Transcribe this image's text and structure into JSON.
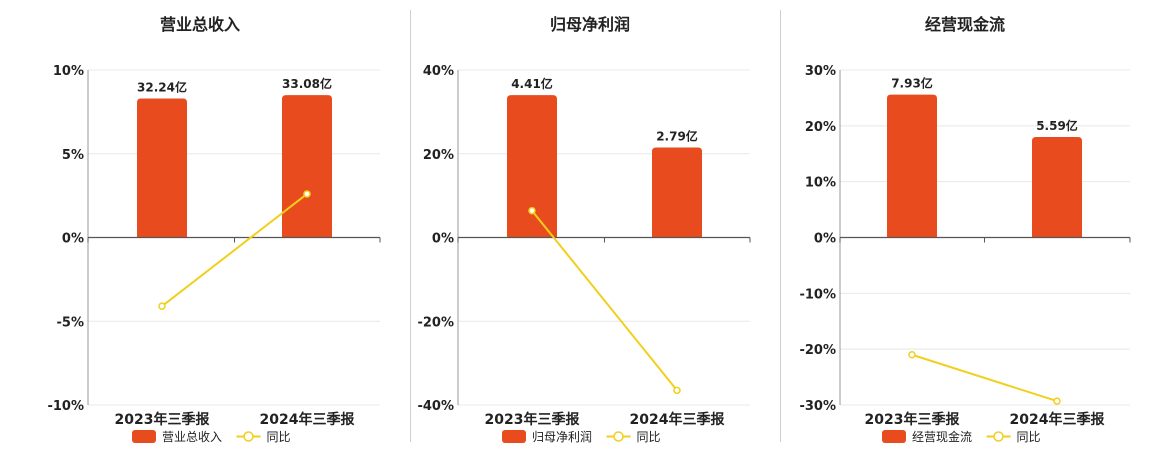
{
  "bar_color": "#e84c1e",
  "line_color": "#f2cf1d",
  "chart_data": [
    {
      "type": "bar",
      "title": "营业总收入",
      "categories": [
        "2023年三季报",
        "2024年三季报"
      ],
      "series": [
        {
          "name": "营业总收入",
          "type": "bar",
          "values": [
            8.3,
            8.5
          ],
          "labels": [
            "32.24亿",
            "33.08亿"
          ]
        },
        {
          "name": "同比",
          "type": "line",
          "values": [
            -4.1,
            2.6
          ]
        }
      ],
      "yticks": [
        10,
        5,
        0,
        -5,
        -10
      ],
      "ytick_labels": [
        "10%",
        "5%",
        "0%",
        "-5%",
        "-10%"
      ],
      "ylim": [
        -10,
        10
      ],
      "grid": true,
      "legend": "bottom"
    },
    {
      "type": "bar",
      "title": "归母净利润",
      "categories": [
        "2023年三季报",
        "2024年三季报"
      ],
      "series": [
        {
          "name": "归母净利润",
          "type": "bar",
          "values": [
            34,
            21.5
          ],
          "labels": [
            "4.41亿",
            "2.79亿"
          ]
        },
        {
          "name": "同比",
          "type": "line",
          "values": [
            6.4,
            -36.5
          ]
        }
      ],
      "yticks": [
        40,
        20,
        0,
        -20,
        -40
      ],
      "ytick_labels": [
        "40%",
        "20%",
        "0%",
        "-20%",
        "-40%"
      ],
      "ylim": [
        -40,
        40
      ],
      "grid": true,
      "legend": "bottom"
    },
    {
      "type": "bar",
      "title": "经营现金流",
      "categories": [
        "2023年三季报",
        "2024年三季报"
      ],
      "series": [
        {
          "name": "经营现金流",
          "type": "bar",
          "values": [
            25.6,
            18
          ],
          "labels": [
            "7.93亿",
            "5.59亿"
          ]
        },
        {
          "name": "同比",
          "type": "line",
          "values": [
            -21,
            -29.3
          ]
        }
      ],
      "yticks": [
        30,
        20,
        10,
        0,
        -10,
        -20,
        -30
      ],
      "ytick_labels": [
        "30%",
        "20%",
        "10%",
        "0%",
        "-10%",
        "-20%",
        "-30%"
      ],
      "ylim": [
        -30,
        30
      ],
      "grid": true,
      "legend": "bottom"
    }
  ]
}
